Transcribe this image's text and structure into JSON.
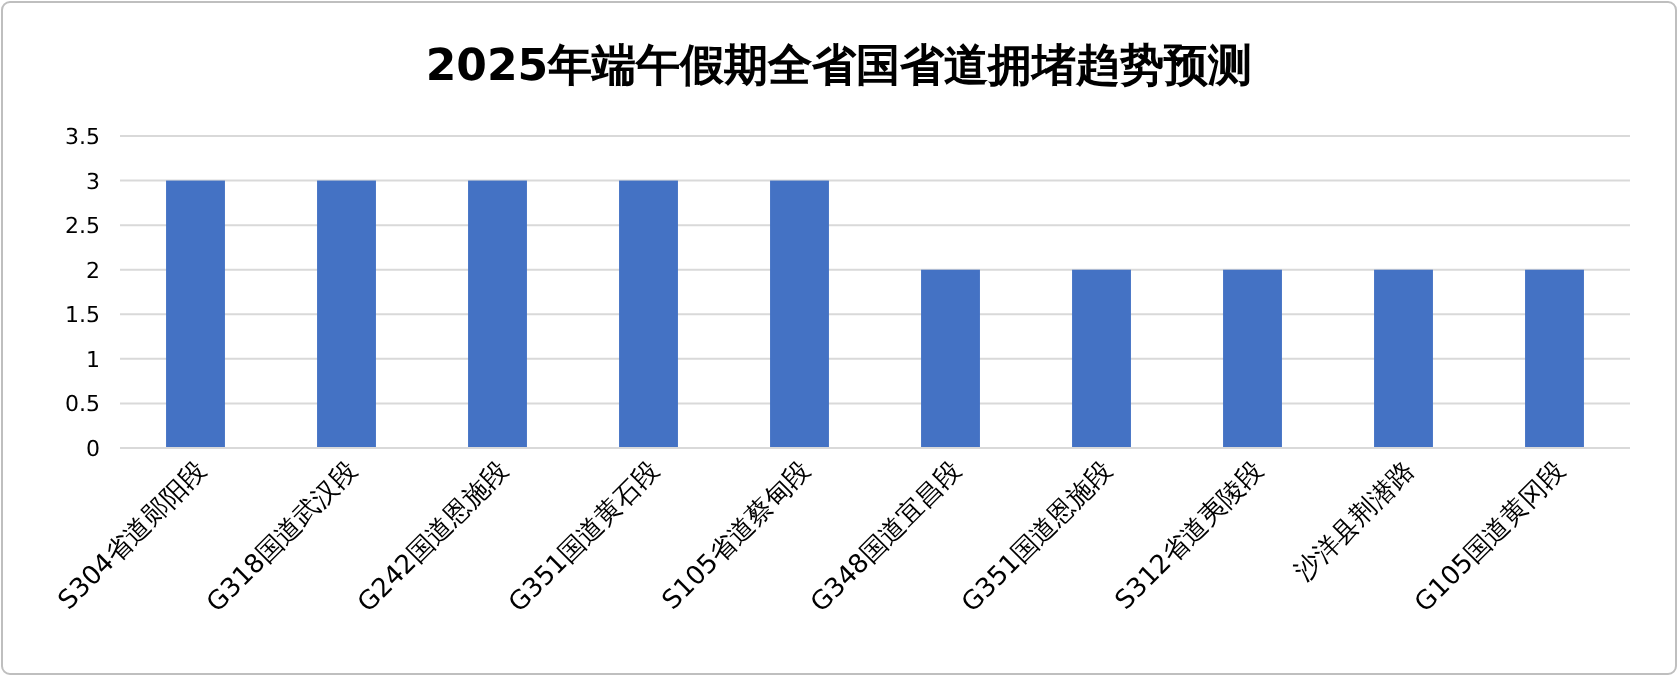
{
  "chart_data": {
    "type": "bar",
    "title": "2025年端午假期全省国省道拥堵趋势预测",
    "categories": [
      "S304省道郧阳段",
      "G318国道武汉段",
      "G242国道恩施段",
      "G351国道黄石段",
      "S105省道蔡甸段",
      "G348国道宜昌段",
      "G351国道恩施段",
      "S312省道夷陵段",
      "沙洋县荆潜路",
      "G105国道黄冈段"
    ],
    "values": [
      3,
      3,
      3,
      3,
      3,
      2,
      2,
      2,
      2,
      2
    ],
    "color": "#4472c4",
    "ylim": [
      0,
      3.5
    ],
    "yticks": [
      0,
      0.5,
      1,
      1.5,
      2,
      2.5,
      3,
      3.5
    ],
    "grid": "y"
  }
}
